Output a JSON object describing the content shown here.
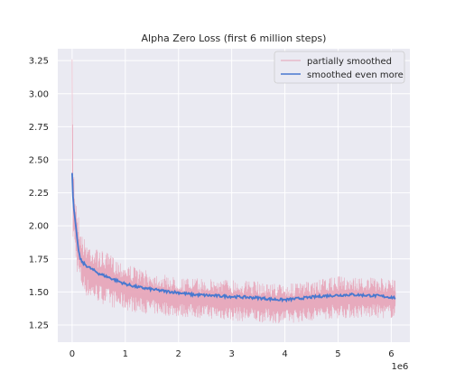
{
  "chart_data": {
    "type": "line",
    "title": "Alpha Zero Loss (first 6 million steps)",
    "xlabel": "",
    "ylabel": "",
    "x_offset_text": "1e6",
    "xlim": [
      -0.27,
      6.35
    ],
    "ylim": [
      1.12,
      3.34
    ],
    "x_ticks": [
      0,
      1,
      2,
      3,
      4,
      5,
      6
    ],
    "x_tick_labels": [
      "0",
      "1",
      "2",
      "3",
      "4",
      "5",
      "6"
    ],
    "y_ticks": [
      1.25,
      1.5,
      1.75,
      2.0,
      2.25,
      2.5,
      2.75,
      3.0,
      3.25
    ],
    "y_tick_labels": [
      "1.25",
      "1.50",
      "1.75",
      "2.00",
      "2.25",
      "2.50",
      "2.75",
      "3.00",
      "3.25"
    ],
    "grid": true,
    "background": "#eaeaf2",
    "legend_position": "top-right",
    "series": [
      {
        "name": "partially smoothed",
        "color": "#e7a3b7",
        "style": "noisy-band",
        "x": [
          0,
          0.02,
          0.05,
          0.1,
          0.15,
          0.2,
          0.3,
          0.5,
          0.75,
          1.0,
          1.25,
          1.5,
          1.75,
          2.0,
          2.5,
          3.0,
          3.5,
          4.0,
          4.5,
          5.0,
          5.5,
          6.0,
          6.08
        ],
        "center": [
          2.3,
          2.15,
          2.05,
          1.85,
          1.76,
          1.72,
          1.68,
          1.63,
          1.6,
          1.56,
          1.53,
          1.52,
          1.51,
          1.49,
          1.48,
          1.47,
          1.46,
          1.45,
          1.46,
          1.48,
          1.47,
          1.46,
          1.46
        ],
        "upper": [
          3.26,
          2.55,
          2.3,
          2.15,
          2.0,
          1.92,
          1.88,
          1.82,
          1.78,
          1.72,
          1.68,
          1.65,
          1.63,
          1.61,
          1.6,
          1.6,
          1.58,
          1.56,
          1.58,
          1.62,
          1.61,
          1.6,
          1.59
        ],
        "lower": [
          1.9,
          1.85,
          1.8,
          1.62,
          1.56,
          1.5,
          1.45,
          1.42,
          1.38,
          1.36,
          1.34,
          1.33,
          1.32,
          1.31,
          1.3,
          1.28,
          1.27,
          1.26,
          1.28,
          1.3,
          1.3,
          1.3,
          1.3
        ]
      },
      {
        "name": "smoothed even more",
        "color": "#4878cf",
        "style": "line",
        "x": [
          0,
          0.02,
          0.05,
          0.1,
          0.15,
          0.2,
          0.3,
          0.5,
          0.75,
          1.0,
          1.25,
          1.5,
          1.75,
          2.0,
          2.25,
          2.5,
          2.75,
          3.0,
          3.25,
          3.5,
          3.75,
          4.0,
          4.25,
          4.5,
          4.75,
          5.0,
          5.25,
          5.5,
          5.75,
          6.0,
          6.08
        ],
        "values": [
          2.4,
          2.17,
          2.07,
          1.87,
          1.75,
          1.72,
          1.69,
          1.64,
          1.6,
          1.56,
          1.535,
          1.52,
          1.505,
          1.495,
          1.48,
          1.475,
          1.47,
          1.465,
          1.46,
          1.455,
          1.445,
          1.44,
          1.45,
          1.46,
          1.47,
          1.475,
          1.48,
          1.475,
          1.47,
          1.46,
          1.455
        ]
      }
    ]
  }
}
